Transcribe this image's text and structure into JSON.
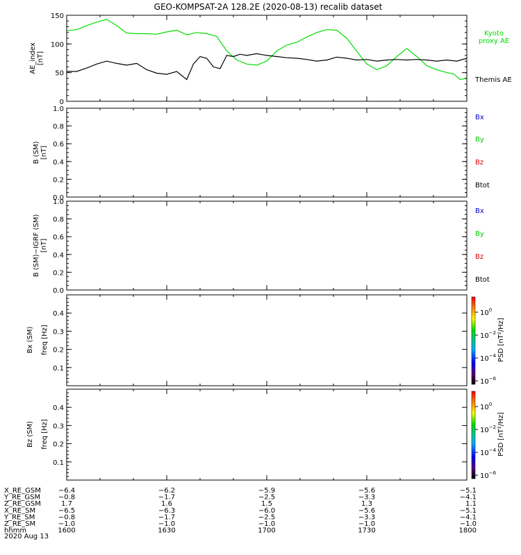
{
  "chart_data": [
    {
      "panel": "ae",
      "type": "line",
      "title": "GEO-KOMPSAT-2A 128.2E (2020-08-13) recalib dataset",
      "ylabel": "AE_index",
      "yunit": "[nT]",
      "ylim": [
        0,
        150
      ],
      "yticks": [
        "0",
        "50",
        "100",
        "150"
      ],
      "xlim": [
        0,
        120
      ],
      "series": [
        {
          "name": "Kyoto proxy AE",
          "legend_lines": [
            "Kyoto",
            "proxy AE"
          ],
          "color": "#00dd00",
          "x": [
            0,
            3,
            6,
            9,
            12,
            15,
            18,
            21,
            24,
            27,
            30,
            33,
            36,
            39,
            42,
            45,
            48,
            51,
            54,
            57,
            60,
            63,
            66,
            69,
            72,
            75,
            78,
            81,
            84,
            87,
            90,
            93,
            96,
            99,
            102,
            105,
            108,
            111,
            114,
            116,
            118,
            120
          ],
          "y": [
            123,
            125,
            132,
            138,
            143,
            132,
            119,
            118,
            118,
            117,
            121,
            124,
            116,
            120,
            118,
            113,
            88,
            72,
            65,
            63,
            70,
            88,
            98,
            103,
            112,
            120,
            125,
            124,
            110,
            87,
            65,
            55,
            62,
            78,
            92,
            78,
            62,
            55,
            50,
            48,
            38,
            40
          ]
        },
        {
          "name": "Themis AE",
          "legend_lines": [
            "Themis AE"
          ],
          "color": "#000000",
          "x": [
            0,
            3,
            6,
            9,
            12,
            15,
            18,
            21,
            24,
            27,
            30,
            33,
            36,
            38,
            40,
            42,
            44,
            46,
            48,
            50,
            52,
            54,
            57,
            60,
            63,
            66,
            69,
            72,
            75,
            78,
            81,
            84,
            87,
            90,
            93,
            96,
            99,
            102,
            105,
            108,
            111,
            114,
            117,
            120
          ],
          "y": [
            52,
            52,
            58,
            65,
            70,
            66,
            63,
            66,
            55,
            49,
            47,
            52,
            38,
            65,
            78,
            75,
            60,
            57,
            80,
            78,
            82,
            80,
            83,
            80,
            78,
            76,
            75,
            73,
            70,
            72,
            77,
            75,
            72,
            73,
            70,
            72,
            73,
            72,
            73,
            72,
            70,
            72,
            70,
            75
          ]
        }
      ]
    },
    {
      "panel": "b",
      "type": "line",
      "ylabel": "B (SM)",
      "yunit": "[nT]",
      "ylim": [
        0,
        1
      ],
      "yticks": [
        "0.0",
        "0.2",
        "0.4",
        "0.6",
        "0.8",
        "1.0"
      ],
      "legend": [
        {
          "label": "Bx",
          "color": "#0000cc"
        },
        {
          "label": "By",
          "color": "#00cc00"
        },
        {
          "label": "Bz",
          "color": "#dd0000"
        },
        {
          "label": "Btot",
          "color": "#000000"
        }
      ]
    },
    {
      "panel": "b_igrf",
      "type": "line",
      "ylabel": "B (SM)−IGRF (SM)",
      "yunit": "[nT]",
      "ylim": [
        0,
        1
      ],
      "yticks": [
        "0.0",
        "0.2",
        "0.4",
        "0.6",
        "0.8",
        "1.0"
      ],
      "legend": [
        {
          "label": "Bx",
          "color": "#0000cc"
        },
        {
          "label": "By",
          "color": "#00cc00"
        },
        {
          "label": "Bz",
          "color": "#dd0000"
        },
        {
          "label": "Btot",
          "color": "#000000"
        }
      ]
    },
    {
      "panel": "bx_spec",
      "type": "heatmap",
      "ylabel1": "Bx (SM)",
      "ylabel2": "freq [Hz]",
      "ylim": [
        0,
        0.5
      ],
      "yticks": [
        "0.1",
        "0.2",
        "0.3",
        "0.4"
      ],
      "colorbar": {
        "label": "PSD [nT²/Hz]",
        "ticks": [
          "10",
          "10",
          "10",
          "10"
        ],
        "exponents": [
          "0",
          "−2",
          "−4",
          "−6"
        ]
      }
    },
    {
      "panel": "bz_spec",
      "type": "heatmap",
      "ylabel1": "Bz (SM)",
      "ylabel2": "freq [Hz]",
      "ylim": [
        0,
        0.5
      ],
      "yticks": [
        "0.1",
        "0.2",
        "0.3",
        "0.4"
      ],
      "colorbar": {
        "label": "PSD [nT²/Hz]",
        "ticks": [
          "10",
          "10",
          "10",
          "10"
        ],
        "exponents": [
          "0",
          "−2",
          "−4",
          "−6"
        ]
      }
    }
  ],
  "xaxis": {
    "rows": [
      {
        "label": "X_RE_GSM",
        "values": [
          "−6.4",
          "−6.2",
          "−5.9",
          "−5.6",
          "−5.1"
        ]
      },
      {
        "label": "Y_RE_GSM",
        "values": [
          "−0.8",
          "−1.7",
          "−2.5",
          "−3.3",
          "−4.1"
        ]
      },
      {
        "label": "Z_RE_GSM",
        "values": [
          "1.7",
          "1.6",
          "1.5",
          "1.3",
          "1.1"
        ]
      },
      {
        "label": "X_RE_SM",
        "values": [
          "−6.5",
          "−6.3",
          "−6.0",
          "−5.6",
          "−5.1"
        ]
      },
      {
        "label": "Y_RE_SM",
        "values": [
          "−0.8",
          "−1.7",
          "−2.5",
          "−3.3",
          "−4.1"
        ]
      },
      {
        "label": "Z_RE_SM",
        "values": [
          "−1.0",
          "−1.0",
          "−1.0",
          "−1.0",
          "−1.0"
        ]
      },
      {
        "label": "hhmm",
        "values": [
          "1600",
          "1630",
          "1700",
          "1730",
          "1800"
        ]
      }
    ],
    "date": "2020 Aug 13"
  }
}
